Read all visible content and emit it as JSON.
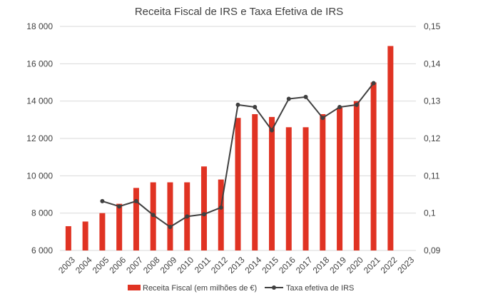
{
  "chart_data": {
    "type": "bar",
    "title": "Receita Fiscal de IRS e Taxa Efetiva de IRS",
    "categories": [
      "2003",
      "2004",
      "2005",
      "2006",
      "2007",
      "2008",
      "2009",
      "2010",
      "2011",
      "2012",
      "2013",
      "2014",
      "2015",
      "2016",
      "2017",
      "2018",
      "2019",
      "2020",
      "2021",
      "2022",
      "2023"
    ],
    "series": [
      {
        "name": "Receita Fiscal (em milhões de €)",
        "type": "bar",
        "axis": "left",
        "color": "#e03323",
        "values": [
          7300,
          7550,
          8000,
          8500,
          9350,
          9650,
          9650,
          9650,
          10500,
          9800,
          13100,
          13300,
          13150,
          12600,
          12600,
          13300,
          13650,
          14000,
          15000,
          16950,
          null
        ]
      },
      {
        "name": "Taxa efetiva de IRS",
        "type": "line",
        "axis": "right",
        "color": "#404040",
        "values": [
          null,
          null,
          0.1032,
          0.1018,
          0.1032,
          0.0995,
          0.0963,
          0.0991,
          0.0997,
          0.1015,
          0.129,
          0.1284,
          0.1222,
          0.1306,
          0.1311,
          0.1255,
          0.1284,
          0.129,
          0.1348,
          null,
          null
        ]
      }
    ],
    "y_left": {
      "min": 6000,
      "max": 18000,
      "ticks": [
        "6 000",
        "8 000",
        "10 000",
        "12 000",
        "14 000",
        "16 000",
        "18 000"
      ],
      "tick_values": [
        6000,
        8000,
        10000,
        12000,
        14000,
        16000,
        18000
      ]
    },
    "y_right": {
      "min": 0.09,
      "max": 0.15,
      "ticks": [
        "0,09",
        "0,1",
        "0,11",
        "0,12",
        "0,13",
        "0,14",
        "0,15"
      ],
      "tick_values": [
        0.09,
        0.1,
        0.11,
        0.12,
        0.13,
        0.14,
        0.15
      ]
    },
    "grid": true,
    "legend_position": "bottom"
  }
}
